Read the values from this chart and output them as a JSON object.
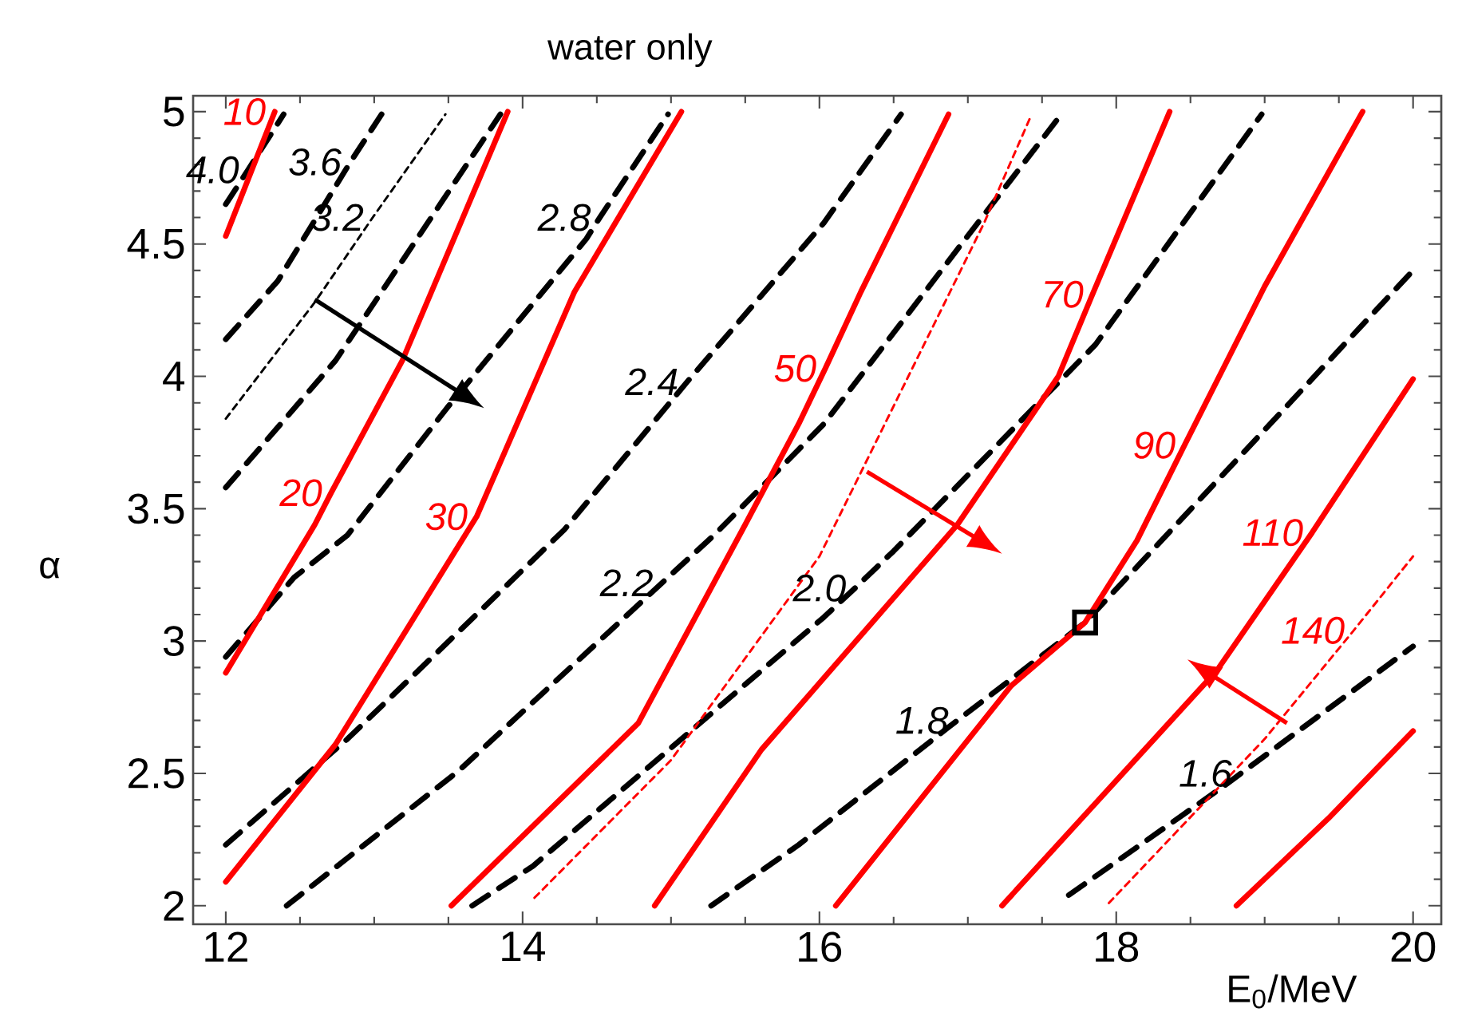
{
  "chart_data": {
    "type": "line",
    "title": "water only",
    "xlabel": "E$_{0}$/MeV",
    "ylabel": "α",
    "xlim": [
      11.78,
      20.19
    ],
    "ylim": [
      1.93,
      5.06
    ],
    "xticks": [
      12,
      14,
      16,
      18,
      20
    ],
    "yticks": [
      2,
      2.5,
      3,
      3.5,
      4,
      4.5,
      5
    ],
    "series": [
      {
        "color": "#000000",
        "line_style": "dashed",
        "x": [
          12.0,
          12.15,
          12.39
        ],
        "values": [
          4.65,
          4.78,
          4.99
        ]
      },
      {
        "color": "#000000",
        "line_style": "dashed",
        "x": [
          12.0,
          12.35,
          12.84,
          13.05
        ],
        "values": [
          4.14,
          4.36,
          4.81,
          4.99
        ]
      },
      {
        "color": "#000000",
        "line_style": "dotted",
        "x": [
          12.0,
          12.6,
          12.99,
          13.48
        ],
        "values": [
          3.84,
          4.28,
          4.6,
          4.99
        ]
      },
      {
        "color": "#000000",
        "line_style": "dashed",
        "x": [
          12.0,
          12.74,
          13.85
        ],
        "values": [
          3.58,
          4.06,
          4.99
        ]
      },
      {
        "color": "#000000",
        "line_style": "dashed",
        "x": [
          12.0,
          12.46,
          12.82,
          13.49,
          14.43,
          14.52,
          14.98
        ],
        "values": [
          2.94,
          3.24,
          3.4,
          3.88,
          4.52,
          4.6,
          4.99
        ]
      },
      {
        "color": "#000000",
        "line_style": "dashed",
        "x": [
          12.0,
          12.82,
          14.28,
          15.11,
          16.03,
          16.55
        ],
        "values": [
          2.23,
          2.63,
          3.42,
          3.98,
          4.58,
          4.99
        ]
      },
      {
        "color": "#000000",
        "line_style": "dashed",
        "x": [
          12.41,
          13.57,
          14.94,
          15.29,
          16.03,
          16.93,
          17.63
        ],
        "values": [
          2.0,
          2.51,
          3.22,
          3.4,
          3.82,
          4.48,
          4.99
        ]
      },
      {
        "color": "#000000",
        "line_style": "dashed",
        "x": [
          13.66,
          14.07,
          16.03,
          16.24,
          16.5,
          17.86,
          18.98
        ],
        "values": [
          2.0,
          2.15,
          3.09,
          3.2,
          3.34,
          4.12,
          4.99
        ]
      },
      {
        "color": "#000000",
        "line_style": "dashed",
        "x": [
          15.27,
          15.86,
          16.86,
          16.93,
          17.79,
          19.07,
          20.0
        ],
        "values": [
          2.0,
          2.23,
          2.67,
          2.7,
          3.07,
          3.84,
          4.4
        ]
      },
      {
        "color": "#000000",
        "line_style": "dashed",
        "x": [
          17.68,
          18.72,
          18.84,
          20.0
        ],
        "values": [
          2.04,
          2.45,
          2.5,
          2.98
        ]
      },
      {
        "color": "#ff0000",
        "line_style": "solid",
        "x": [
          12.0,
          12.33
        ],
        "values": [
          4.53,
          5.0
        ]
      },
      {
        "color": "#ff0000",
        "line_style": "solid",
        "x": [
          12.0,
          12.6,
          12.71,
          13.19,
          13.9
        ],
        "values": [
          2.88,
          3.44,
          3.56,
          4.06,
          5.0
        ]
      },
      {
        "color": "#ff0000",
        "line_style": "solid",
        "x": [
          12.0,
          12.74,
          13.69,
          14.35,
          15.07
        ],
        "values": [
          2.09,
          2.61,
          3.47,
          4.32,
          5.0
        ]
      },
      {
        "color": "#ff0000",
        "line_style": "solid",
        "x": [
          13.52,
          14.78,
          15.5,
          15.86,
          16.04,
          16.28,
          16.87
        ],
        "values": [
          2.0,
          2.69,
          3.44,
          3.82,
          4.03,
          4.32,
          4.99
        ]
      },
      {
        "color": "#ff0000",
        "line_style": "solid",
        "x": [
          14.89,
          15.61,
          16.93,
          17.61,
          17.84,
          18.36
        ],
        "values": [
          2.0,
          2.59,
          3.44,
          4.0,
          4.31,
          5.0
        ]
      },
      {
        "color": "#ff0000",
        "line_style": "solid",
        "x": [
          16.11,
          17.29,
          17.79,
          18.14,
          18.46,
          19.0,
          19.66
        ],
        "values": [
          2.0,
          2.83,
          3.07,
          3.38,
          3.74,
          4.34,
          5.0
        ]
      },
      {
        "color": "#ff0000",
        "line_style": "solid",
        "x": [
          17.23,
          18.68,
          19.32,
          20.0
        ],
        "values": [
          2.0,
          2.89,
          3.41,
          3.99
        ]
      },
      {
        "color": "#ff0000",
        "line_style": "solid",
        "x": [
          18.81,
          19.43,
          20.0
        ],
        "values": [
          2.0,
          2.33,
          2.66
        ]
      },
      {
        "color": "#ff0000",
        "line_style": "dotted",
        "x": [
          14.08,
          15.0,
          16.0,
          17.11,
          17.43
        ],
        "values": [
          2.03,
          2.55,
          3.32,
          4.58,
          4.99
        ]
      },
      {
        "color": "#ff0000",
        "line_style": "dotted",
        "x": [
          17.95,
          19.0,
          19.6,
          20.0
        ],
        "values": [
          2.01,
          2.63,
          3.04,
          3.32
        ]
      },
      {
        "type": "scatter",
        "marker": "square",
        "color": "#000000",
        "x": [
          17.79
        ],
        "values": [
          3.07
        ]
      }
    ],
    "annotations": [
      {
        "text": "10",
        "x": 12.33,
        "y": 5.0
      },
      {
        "text": "4.0",
        "x": 12.15,
        "y": 4.78
      },
      {
        "text": "3.6",
        "x": 12.84,
        "y": 4.81
      },
      {
        "text": "3.2",
        "x": 12.99,
        "y": 4.6
      },
      {
        "text": "2.8",
        "x": 14.52,
        "y": 4.6
      },
      {
        "text": "2.4",
        "x": 15.11,
        "y": 3.98
      },
      {
        "text": "2.2",
        "x": 14.94,
        "y": 3.22
      },
      {
        "text": "2.0",
        "x": 16.24,
        "y": 3.2
      },
      {
        "text": "1.8",
        "x": 16.93,
        "y": 2.7
      },
      {
        "text": "1.6",
        "x": 18.84,
        "y": 2.5
      },
      {
        "text": "140",
        "x": 19.6,
        "y": 3.04
      },
      {
        "text": "20",
        "x": 12.71,
        "y": 3.56
      },
      {
        "text": "30",
        "x": 13.69,
        "y": 3.47
      },
      {
        "text": "50",
        "x": 16.04,
        "y": 4.03
      },
      {
        "text": "70",
        "x": 17.84,
        "y": 4.31
      },
      {
        "text": "90",
        "x": 18.46,
        "y": 3.74
      },
      {
        "text": "110",
        "x": 19.32,
        "y": 3.41
      }
    ]
  }
}
